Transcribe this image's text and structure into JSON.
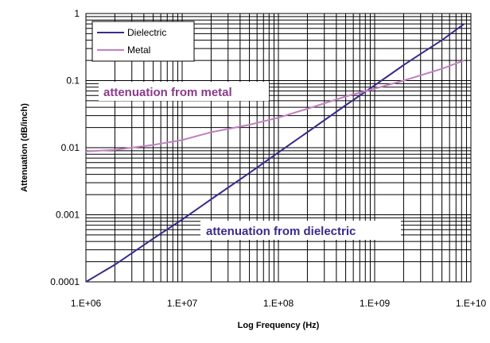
{
  "chart_data": {
    "type": "line",
    "title": "",
    "xlabel": "Log Frequency (Hz)",
    "ylabel": "Attenuation (dB/inch)",
    "x_scale": "log",
    "y_scale": "log",
    "xlim": [
      1000000,
      10000000000
    ],
    "ylim": [
      0.0001,
      1
    ],
    "x_tick_labels": [
      "1.E+06",
      "1.E+07",
      "1.E+08",
      "1.E+09",
      "1.E+10"
    ],
    "y_tick_labels": [
      "0.0001",
      "0.001",
      "0.01",
      "0.1",
      "1"
    ],
    "grid": true,
    "legend_position": "top-left",
    "series": [
      {
        "name": "Dielectric",
        "color": "#3b2a8c",
        "x": [
          1000000,
          2000000,
          5000000,
          10000000,
          20000000,
          50000000,
          100000000,
          200000000,
          500000000,
          1000000000,
          2000000000,
          3000000000,
          5000000000,
          8500000000
        ],
        "y": [
          0.0001,
          0.00018,
          0.00044,
          0.00085,
          0.0017,
          0.0042,
          0.0085,
          0.017,
          0.043,
          0.085,
          0.17,
          0.25,
          0.4,
          0.7
        ]
      },
      {
        "name": "Metal",
        "color": "#c080c0",
        "x": [
          1000000,
          2000000,
          5000000,
          10000000,
          20000000,
          50000000,
          100000000,
          200000000,
          500000000,
          1000000000,
          2000000000,
          5000000000,
          8500000000
        ],
        "y": [
          0.0088,
          0.0093,
          0.011,
          0.013,
          0.017,
          0.022,
          0.028,
          0.038,
          0.058,
          0.076,
          0.1,
          0.15,
          0.2
        ]
      }
    ],
    "annotations": [
      {
        "text": "attenuation from metal",
        "color": "#8a3a8a"
      },
      {
        "text": "attenuation from dielectric",
        "color": "#3b2a8c"
      }
    ]
  }
}
